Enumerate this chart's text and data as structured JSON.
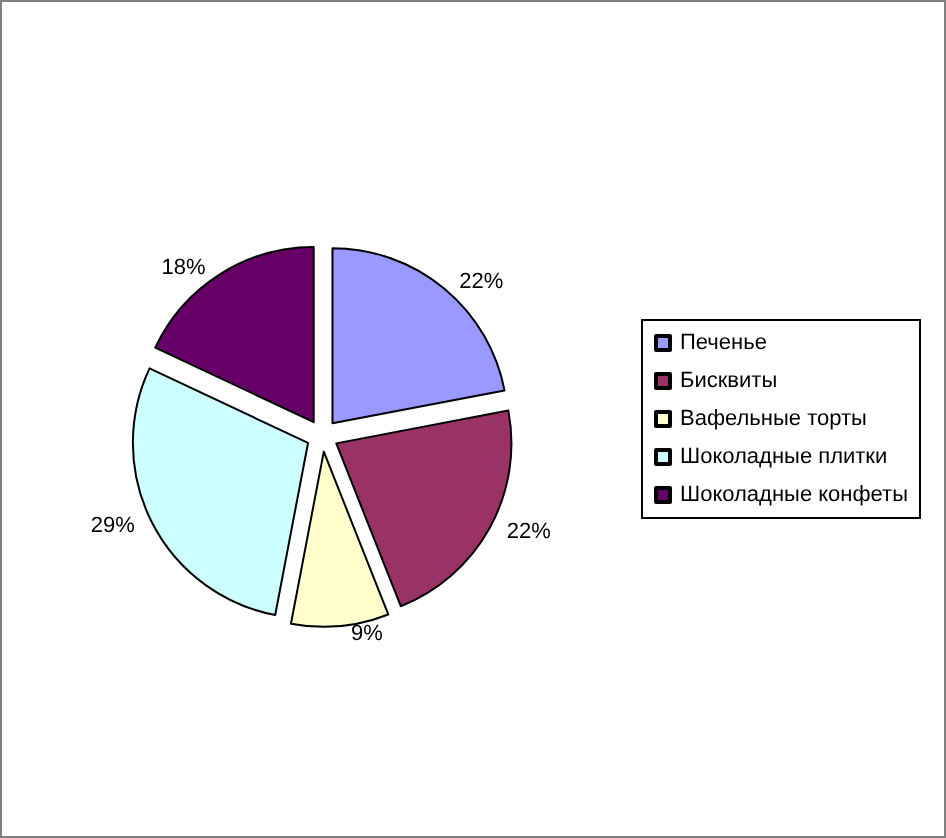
{
  "chart_data": {
    "type": "pie",
    "categories": [
      "Печенье",
      "Бисквиты",
      "Вафельные торты",
      "Шоколадные плитки",
      "Шоколадные конфеты"
    ],
    "values": [
      22,
      22,
      9,
      29,
      18
    ],
    "value_labels": [
      "22%",
      "22%",
      "9%",
      "29%",
      "18%"
    ],
    "colors": [
      "#9999ff",
      "#993366",
      "#ffffcc",
      "#ccffff",
      "#660066"
    ],
    "legend": "right"
  }
}
